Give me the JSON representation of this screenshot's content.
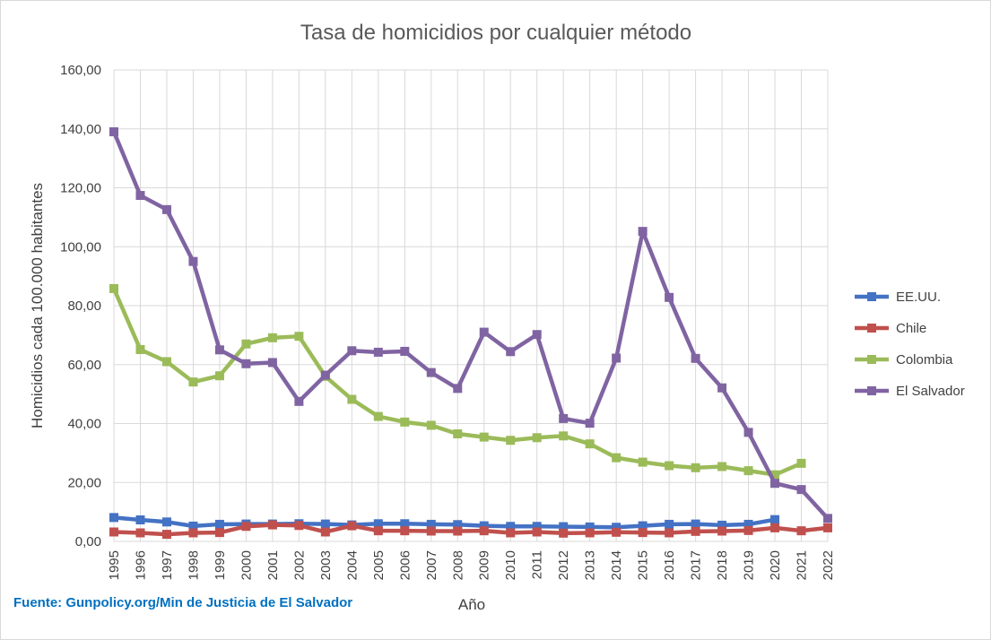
{
  "chart_data": {
    "type": "line",
    "title": "Tasa de homicidios por cualquier método",
    "xlabel": "Año",
    "ylabel": "Homicidios cada 100.000 habitantes",
    "ylim": [
      0,
      160
    ],
    "yticks": [
      "0,00",
      "20,00",
      "40,00",
      "60,00",
      "80,00",
      "100,00",
      "120,00",
      "140,00",
      "160,00"
    ],
    "grid": true,
    "legend_position": "right",
    "source": "Fuente: Gunpolicy.org/Min de Justicia de El Salvador",
    "x": [
      "1995",
      "1996",
      "1997",
      "1998",
      "1999",
      "2000",
      "2001",
      "2002",
      "2003",
      "2004",
      "2005",
      "2006",
      "2007",
      "2008",
      "2009",
      "2010",
      "2011",
      "2012",
      "2013",
      "2014",
      "2015",
      "2016",
      "2017",
      "2018",
      "2019",
      "2020",
      "2021",
      "2022"
    ],
    "series": [
      {
        "name": "EE.UU.",
        "color": "#4472c4",
        "values": [
          8.1,
          7.3,
          6.6,
          5.2,
          5.8,
          5.9,
          5.9,
          6.0,
          5.9,
          5.6,
          6.0,
          6.0,
          5.8,
          5.7,
          5.3,
          5.1,
          5.1,
          5.0,
          4.9,
          4.8,
          5.3,
          5.8,
          5.9,
          5.5,
          5.8,
          7.4,
          null,
          null
        ]
      },
      {
        "name": "Chile",
        "color": "#c0504d",
        "values": [
          3.2,
          2.9,
          2.4,
          2.9,
          3.0,
          5.1,
          5.6,
          5.4,
          3.2,
          5.3,
          3.6,
          3.6,
          3.5,
          3.5,
          3.6,
          2.9,
          3.2,
          2.8,
          2.9,
          3.1,
          3.0,
          2.9,
          3.4,
          3.5,
          3.7,
          4.6,
          3.6,
          4.6
        ]
      },
      {
        "name": "Colombia",
        "color": "#9bbb59",
        "values": [
          85.8,
          65.1,
          61.0,
          54.1,
          56.2,
          67.0,
          69.1,
          69.6,
          56.0,
          48.2,
          42.4,
          40.5,
          39.4,
          36.5,
          35.4,
          34.3,
          35.2,
          35.8,
          33.1,
          28.4,
          26.9,
          25.7,
          25.0,
          25.4,
          24.0,
          22.6,
          26.5,
          null
        ]
      },
      {
        "name": "El Salvador",
        "color": "#8064a2",
        "values": [
          139.0,
          117.4,
          112.6,
          95.0,
          65.0,
          60.3,
          60.7,
          47.5,
          56.4,
          64.7,
          64.2,
          64.5,
          57.3,
          51.9,
          71.0,
          64.4,
          70.2,
          41.7,
          40.1,
          62.2,
          105.2,
          82.8,
          62.1,
          52.1,
          37.0,
          19.7,
          17.6,
          7.8
        ]
      }
    ]
  }
}
